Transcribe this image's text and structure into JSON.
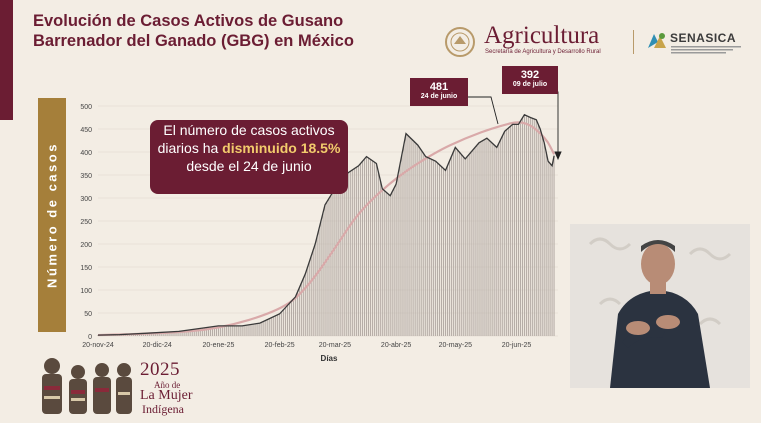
{
  "header": {
    "title_line1": "Evolución de Casos Activos de Gusano",
    "title_line2": "Barrenador del Ganado (GBG) en México"
  },
  "logos": {
    "agricultura_name": "Agricultura",
    "agricultura_subtitle": "Secretaría de Agricultura y Desarrollo Rural",
    "senasica_name": "SENASICA"
  },
  "callout": {
    "part1": "El número de casos activos diarios ha",
    "highlight": "disminuido 18.5%",
    "part2": "desde el 24 de junio"
  },
  "annotations": [
    {
      "value": "481",
      "date": "24 de junio"
    },
    {
      "value": "392",
      "date": "09 de julio"
    }
  ],
  "footer": {
    "year": "2025",
    "line1": "Año de",
    "line2": "La Mujer",
    "line3": "Indígena"
  },
  "colors": {
    "brand": "#6b1d33",
    "gold": "#a57f3a",
    "bars": "#b5aca6",
    "line": "#3a3a3a",
    "trend": "#d9a9a9"
  },
  "chart_data": {
    "type": "line",
    "title": "",
    "xlabel": "Días",
    "ylabel": "Número de casos",
    "ylim": [
      0,
      500
    ],
    "yticks": [
      "0",
      "50",
      "100",
      "150",
      "200",
      "250",
      "300",
      "350",
      "400",
      "450",
      "500"
    ],
    "xticks": [
      "20-nov-24",
      "20-dic-24",
      "20-ene-25",
      "20-feb-25",
      "20-mar-25",
      "20-abr-25",
      "20-may-25",
      "20-jun-25"
    ],
    "x_start": "2024-11-20",
    "x_end": "2025-07-11",
    "grid": true,
    "series": [
      {
        "style": "bars+line",
        "x": [
          "2024-11-20",
          "2024-12-01",
          "2024-12-15",
          "2024-12-31",
          "2025-01-10",
          "2025-01-20",
          "2025-02-01",
          "2025-02-10",
          "2025-02-20",
          "2025-02-28",
          "2025-03-05",
          "2025-03-10",
          "2025-03-15",
          "2025-03-20",
          "2025-03-25",
          "2025-04-01",
          "2025-04-05",
          "2025-04-10",
          "2025-04-13",
          "2025-04-17",
          "2025-04-20",
          "2025-04-25",
          "2025-05-01",
          "2025-05-05",
          "2025-05-10",
          "2025-05-15",
          "2025-05-20",
          "2025-05-25",
          "2025-06-01",
          "2025-06-05",
          "2025-06-10",
          "2025-06-14",
          "2025-06-18",
          "2025-06-21",
          "2025-06-24",
          "2025-06-27",
          "2025-06-30",
          "2025-07-02",
          "2025-07-04",
          "2025-07-06",
          "2025-07-08",
          "2025-07-09"
        ],
        "y": [
          2,
          3,
          6,
          10,
          16,
          22,
          22,
          28,
          48,
          85,
          135,
          200,
          285,
          320,
          350,
          370,
          390,
          375,
          320,
          305,
          330,
          440,
          415,
          390,
          380,
          360,
          410,
          385,
          420,
          430,
          410,
          445,
          460,
          460,
          481,
          475,
          470,
          450,
          420,
          380,
          370,
          392
        ]
      },
      {
        "style": "smooth-trend",
        "x": [
          "2024-11-20",
          "2024-12-20",
          "2025-01-20",
          "2025-02-20",
          "2025-03-05",
          "2025-03-20",
          "2025-04-01",
          "2025-04-20",
          "2025-05-10",
          "2025-05-25",
          "2025-06-10",
          "2025-06-24",
          "2025-07-05",
          "2025-07-09"
        ],
        "y": [
          2,
          5,
          15,
          55,
          100,
          190,
          270,
          345,
          400,
          430,
          455,
          470,
          430,
          395
        ]
      }
    ]
  }
}
